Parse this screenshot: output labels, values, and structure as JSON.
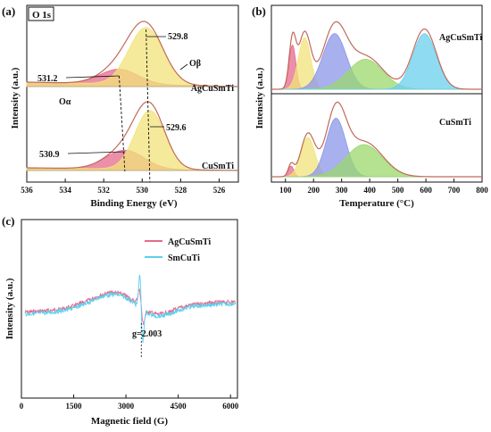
{
  "chart_data": [
    {
      "id": "a",
      "type": "area",
      "panel_label": "(a)",
      "inset_label": "O 1s",
      "xlabel": "Binding Energy (eV)",
      "ylabel": "Intensity (a.u.)",
      "xlim": [
        536,
        525
      ],
      "x_reversed": true,
      "xticks": [
        536,
        534,
        532,
        530,
        528,
        526
      ],
      "samples": [
        {
          "name": "AgCuSmTi",
          "peaks": [
            {
              "label": "531.2",
              "center": 531.2,
              "height": 0.26,
              "sigma": 1.0,
              "color": "#e66a8c"
            },
            {
              "label": "529.8",
              "center": 529.8,
              "height": 1.0,
              "sigma": 0.9,
              "color": "#f2e37a"
            }
          ],
          "annotations": [
            "Oα",
            "Oβ"
          ]
        },
        {
          "name": "CuSmTi",
          "peaks": [
            {
              "label": "530.9",
              "center": 530.9,
              "height": 0.32,
              "sigma": 1.0,
              "color": "#e66a8c"
            },
            {
              "label": "529.6",
              "center": 529.6,
              "height": 1.0,
              "sigma": 0.78,
              "color": "#f2e37a"
            }
          ]
        }
      ]
    },
    {
      "id": "b",
      "type": "area",
      "panel_label": "(b)",
      "xlabel": "Temperature (°C)",
      "ylabel": "Intensity (a.u.)",
      "xlim": [
        50,
        800
      ],
      "xticks": [
        100,
        200,
        300,
        400,
        500,
        600,
        700,
        800
      ],
      "samples": [
        {
          "name": "AgCuSmTi",
          "peaks": [
            {
              "center": 125,
              "height": 0.62,
              "sigma": 12,
              "color": "#e66a8c"
            },
            {
              "center": 168,
              "height": 0.72,
              "sigma": 22,
              "color": "#f2e37a"
            },
            {
              "center": 275,
              "height": 0.78,
              "sigma": 42,
              "color": "#8b96e8"
            },
            {
              "center": 385,
              "height": 0.42,
              "sigma": 62,
              "color": "#9bd86c"
            },
            {
              "center": 595,
              "height": 0.78,
              "sigma": 42,
              "color": "#6ad0ee"
            }
          ]
        },
        {
          "name": "CuSmTi",
          "peaks": [
            {
              "center": 120,
              "height": 0.15,
              "sigma": 10,
              "color": "#e66a8c"
            },
            {
              "center": 180,
              "height": 0.55,
              "sigma": 25,
              "color": "#f2e37a"
            },
            {
              "center": 280,
              "height": 0.82,
              "sigma": 35,
              "color": "#8b96e8"
            },
            {
              "center": 380,
              "height": 0.45,
              "sigma": 65,
              "color": "#9bd86c"
            }
          ]
        }
      ]
    },
    {
      "id": "c",
      "type": "line",
      "panel_label": "(c)",
      "xlabel": "Magnetic field (G)",
      "ylabel": "Intensity (a.u.)",
      "xlim": [
        0,
        6200
      ],
      "xticks": [
        0,
        1500,
        3000,
        4500,
        6000
      ],
      "annotation": "g=2.003",
      "g_field": 3440,
      "series": [
        {
          "name": "AgCuSmTi",
          "color": "#e66a8c"
        },
        {
          "name": "SmCuTi",
          "color": "#5ad0ee"
        }
      ]
    }
  ]
}
